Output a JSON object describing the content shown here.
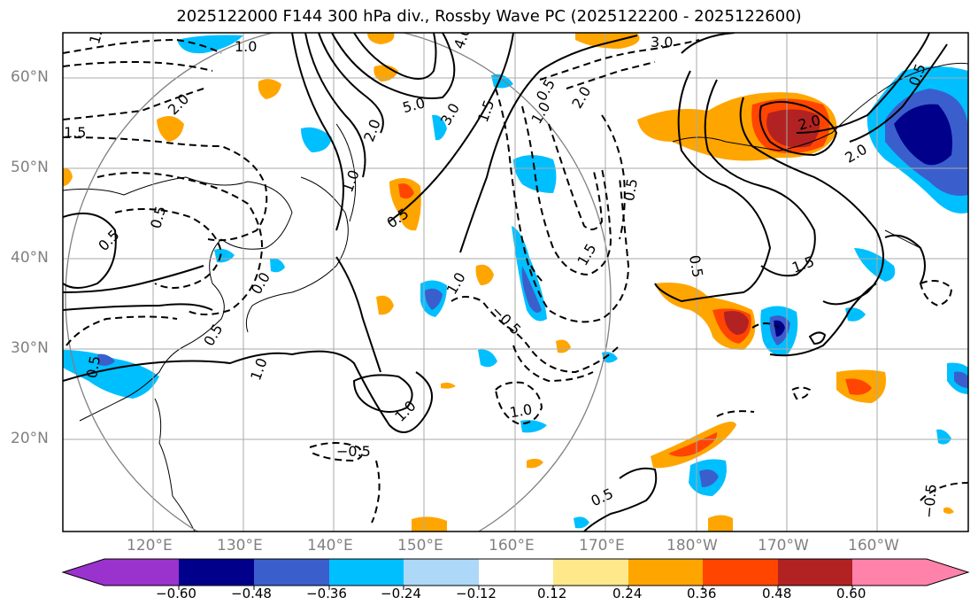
{
  "title": "2025122000 F144 300 hPa div., Rossby Wave PC (2025122200 - 2025122600)",
  "latitude_labels": [
    "60°N",
    "50°N",
    "40°N",
    "30°N",
    "20°N"
  ],
  "longitude_labels": [
    "120°E",
    "130°E",
    "140°E",
    "150°E",
    "160°E",
    "170°E",
    "180°W",
    "170°W",
    "160°W"
  ],
  "colorbar": {
    "ticks": [
      "−0.60",
      "−0.48",
      "−0.36",
      "−0.24",
      "−0.12",
      "0.12",
      "0.24",
      "0.36",
      "0.48",
      "0.60"
    ],
    "colors": [
      "#9a32cd",
      "#00008b",
      "#3a5fcd",
      "#00bfff",
      "#add8f8",
      "#ffffff",
      "#ffe88a",
      "#ffa500",
      "#ff4500",
      "#b22222",
      "#ff82ab"
    ]
  },
  "contour_labels": [
    "1.5",
    "1.0",
    "2.0",
    "1.5",
    "0.5",
    "0.5",
    "0.5",
    "4.0",
    "5.0",
    "3.0",
    "2.0",
    "1.0",
    "1.5",
    "1.0",
    "0.5",
    "0.5",
    "3.0",
    "2.0",
    "1.0",
    "0.5",
    "1.5",
    "2.0",
    "2.0",
    "1.5",
    "0.5",
    "0.5",
    "1.0",
    "1.0",
    "0.5",
    "−0.5",
    "1.0",
    "0.5",
    "−0.5",
    "0.0"
  ]
}
